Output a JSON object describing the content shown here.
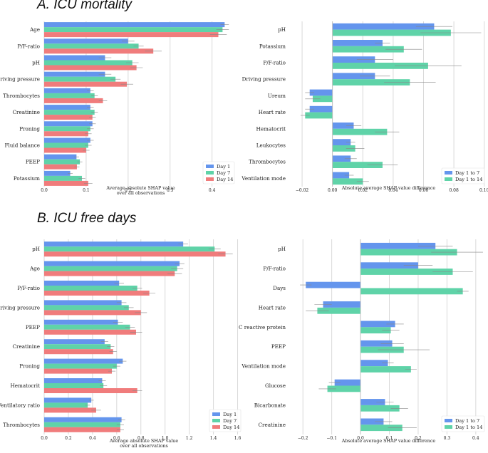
{
  "sections": {
    "a": "A.  ICU mortality",
    "b": "B.  ICU free days"
  },
  "colors": {
    "day1": "#6495ed",
    "day7": "#5fd3a8",
    "day14": "#f07c7c",
    "grid": "#d9d9d9",
    "errorbar": "#888888"
  },
  "chart_data": [
    {
      "id": "A-left",
      "type": "bar",
      "orientation": "horizontal",
      "categories": [
        "Age",
        "P/F-ratio",
        "pH",
        "Driving pressure",
        "Thrombocytes",
        "Creatinine",
        "Proning",
        "Fluid balance",
        "PEEP",
        "Potassium"
      ],
      "series": [
        {
          "name": "Day 1",
          "color_key": "day1",
          "values": [
            0.43,
            0.2,
            0.145,
            0.145,
            0.11,
            0.11,
            0.115,
            0.11,
            0.077,
            0.062
          ],
          "err": [
            0.01,
            0.015,
            0.015,
            0.015,
            0.008,
            0.008,
            0.008,
            0.008,
            0.006,
            0.006
          ]
        },
        {
          "name": "Day 7",
          "color_key": "day7",
          "values": [
            0.425,
            0.225,
            0.21,
            0.17,
            0.12,
            0.12,
            0.11,
            0.105,
            0.085,
            0.09
          ],
          "err": [
            0.015,
            0.012,
            0.015,
            0.012,
            0.008,
            0.008,
            0.008,
            0.008,
            0.006,
            0.008
          ]
        },
        {
          "name": "Day 14",
          "color_key": "day14",
          "values": [
            0.415,
            0.26,
            0.22,
            0.197,
            0.14,
            0.115,
            0.105,
            0.1,
            0.078,
            0.105
          ],
          "err": [
            0.02,
            0.02,
            0.015,
            0.015,
            0.01,
            0.008,
            0.008,
            0.008,
            0.006,
            0.01
          ]
        }
      ],
      "xlim": [
        0,
        0.46
      ],
      "xticks": [
        "0.0",
        "0.1",
        "0.2",
        "0.3",
        "0.4"
      ],
      "xlabel": "Average absolute SHAP value",
      "xlabel2": "over all observations",
      "legend": [
        "Day 1",
        "Day 7",
        "Day 14"
      ],
      "legend_position": "bottom-right"
    },
    {
      "id": "A-right",
      "type": "bar",
      "orientation": "horizontal",
      "categories": [
        "pH",
        "Potassium",
        "P/F-ratio",
        "Driving pressure",
        "Ureum",
        "Heart rate",
        "Hematocrit",
        "Leukocytes",
        "Thrombocytes",
        "Ventilation mode"
      ],
      "series": [
        {
          "name": "Day 1 to 7",
          "color_key": "day1",
          "values": [
            0.067,
            0.033,
            0.028,
            0.028,
            -0.015,
            -0.015,
            0.014,
            0.012,
            0.012,
            0.011
          ],
          "err": [
            0.012,
            0.005,
            0.012,
            0.01,
            0.003,
            0.003,
            0.005,
            0.003,
            0.004,
            0.003
          ]
        },
        {
          "name": "Day 1 to 14",
          "color_key": "day7",
          "values": [
            0.078,
            0.047,
            0.063,
            0.051,
            -0.013,
            -0.018,
            0.036,
            0.015,
            0.033,
            0.02
          ],
          "err": [
            0.02,
            0.012,
            0.022,
            0.017,
            0.005,
            0.003,
            0.008,
            0.006,
            0.01,
            0.004
          ]
        }
      ],
      "xlim": [
        -0.028,
        0.102
      ],
      "xticks": [
        "−0.02",
        "0.00",
        "0.02",
        "0.04",
        "0.06",
        "0.08",
        "0.10"
      ],
      "xlabel": "Absolute average SHAP value difference",
      "legend": [
        "Day 1 to 7",
        "Day 1 to 14"
      ],
      "legend_position": "bottom-right"
    },
    {
      "id": "B-left",
      "type": "bar",
      "orientation": "horizontal",
      "categories": [
        "pH",
        "Age",
        "P/F-ratio",
        "Driving pressure",
        "PEEP",
        "Creatinine",
        "Proning",
        "Hematocrit",
        "Ventilatory ratio",
        "Thrombocytes"
      ],
      "series": [
        {
          "name": "Day 1",
          "color_key": "day1",
          "values": [
            1.15,
            1.12,
            0.62,
            0.64,
            0.61,
            0.5,
            0.65,
            0.48,
            0.39,
            0.64
          ],
          "err": [
            0.04,
            0.04,
            0.04,
            0.04,
            0.04,
            0.03,
            0.03,
            0.03,
            0.02,
            0.03
          ]
        },
        {
          "name": "Day 7",
          "color_key": "day7",
          "values": [
            1.41,
            1.1,
            0.77,
            0.7,
            0.71,
            0.55,
            0.6,
            0.49,
            0.36,
            0.63
          ],
          "err": [
            0.05,
            0.05,
            0.04,
            0.04,
            0.04,
            0.03,
            0.03,
            0.03,
            0.02,
            0.03
          ]
        },
        {
          "name": "Day 14",
          "color_key": "day14",
          "values": [
            1.5,
            1.08,
            0.87,
            0.8,
            0.76,
            0.57,
            0.56,
            0.77,
            0.43,
            0.63
          ],
          "err": [
            0.06,
            0.06,
            0.05,
            0.05,
            0.05,
            0.03,
            0.03,
            0.04,
            0.04,
            0.03
          ]
        }
      ],
      "xlim": [
        0,
        1.65
      ],
      "xticks": [
        "0.0",
        "0.2",
        "0.4",
        "0.6",
        "0.8",
        "1.0",
        "1.2",
        "1.4",
        "1.6"
      ],
      "xlabel": "Average absolute SHAP value",
      "xlabel2": "over all observations",
      "legend": [
        "Day 1",
        "Day 7",
        "Day 14"
      ],
      "legend_position": "bottom-right"
    },
    {
      "id": "B-right",
      "type": "bar",
      "orientation": "horizontal",
      "categories": [
        "pH",
        "P/F-ratio",
        "Days",
        "Heart rate",
        "C reactive protein",
        "PEEP",
        "Ventilation mode",
        "Glucose",
        "Bicarbonate",
        "Creatinine"
      ],
      "series": [
        {
          "name": "Day 1 to 7",
          "color_key": "day1",
          "values": [
            0.26,
            0.2,
            -0.19,
            -0.13,
            0.12,
            0.11,
            0.095,
            -0.09,
            0.085,
            0.08
          ],
          "err": [
            0.06,
            0.05,
            0.02,
            0.03,
            0.03,
            0.04,
            0.02,
            0.02,
            0.03,
            0.03
          ]
        },
        {
          "name": "Day 1 to 14",
          "color_key": "day7",
          "values": [
            0.335,
            0.32,
            0.355,
            -0.15,
            0.105,
            0.15,
            0.175,
            -0.115,
            0.135,
            0.145
          ],
          "err": [
            0.09,
            0.07,
            0.02,
            0.04,
            0.03,
            0.09,
            0.02,
            0.03,
            0.03,
            0.05
          ]
        }
      ],
      "xlim": [
        -0.245,
        0.44
      ],
      "xticks": [
        "−0.2",
        "−0.1",
        "0.0",
        "0.1",
        "0.2",
        "0.3",
        "0.4"
      ],
      "xlabel": "Absolute average SHAP value difference",
      "legend": [
        "Day 1 to 7",
        "Day 1 to 14"
      ],
      "legend_position": "bottom-right"
    }
  ]
}
